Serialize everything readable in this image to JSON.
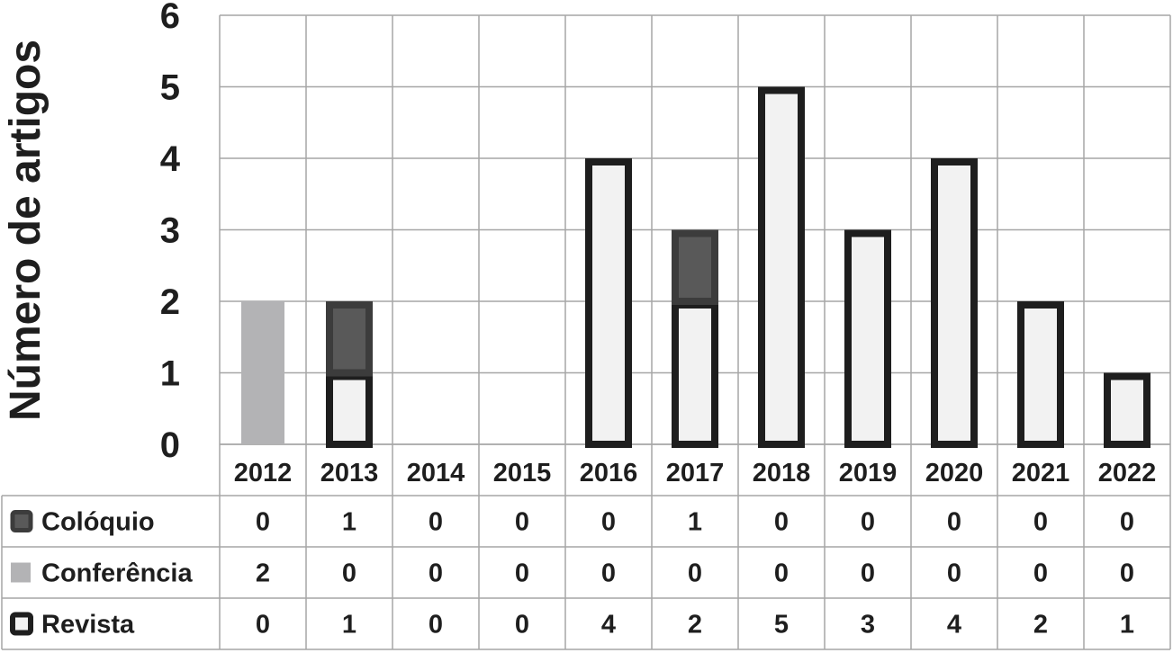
{
  "chart_data": {
    "type": "bar",
    "stacked": true,
    "title": "",
    "xlabel": "",
    "ylabel": "Número de artigos",
    "ylim": [
      0,
      6
    ],
    "yticks": [
      0,
      1,
      2,
      3,
      4,
      5,
      6
    ],
    "grid": true,
    "legend": "data-table-below",
    "categories": [
      "2012",
      "2013",
      "2014",
      "2015",
      "2016",
      "2017",
      "2018",
      "2019",
      "2020",
      "2021",
      "2022"
    ],
    "series": [
      {
        "name": "Colóquio",
        "values": [
          0,
          1,
          0,
          0,
          0,
          1,
          0,
          0,
          0,
          0,
          0
        ],
        "color": "#595959",
        "style": "outlined-dark"
      },
      {
        "name": "Conferência",
        "values": [
          2,
          0,
          0,
          0,
          0,
          0,
          0,
          0,
          0,
          0,
          0
        ],
        "color": "#b3b3b5",
        "style": "solid"
      },
      {
        "name": "Revista",
        "values": [
          0,
          1,
          0,
          0,
          4,
          2,
          5,
          3,
          4,
          2,
          1
        ],
        "color": "#f2f2f2",
        "style": "outlined-light"
      }
    ]
  }
}
